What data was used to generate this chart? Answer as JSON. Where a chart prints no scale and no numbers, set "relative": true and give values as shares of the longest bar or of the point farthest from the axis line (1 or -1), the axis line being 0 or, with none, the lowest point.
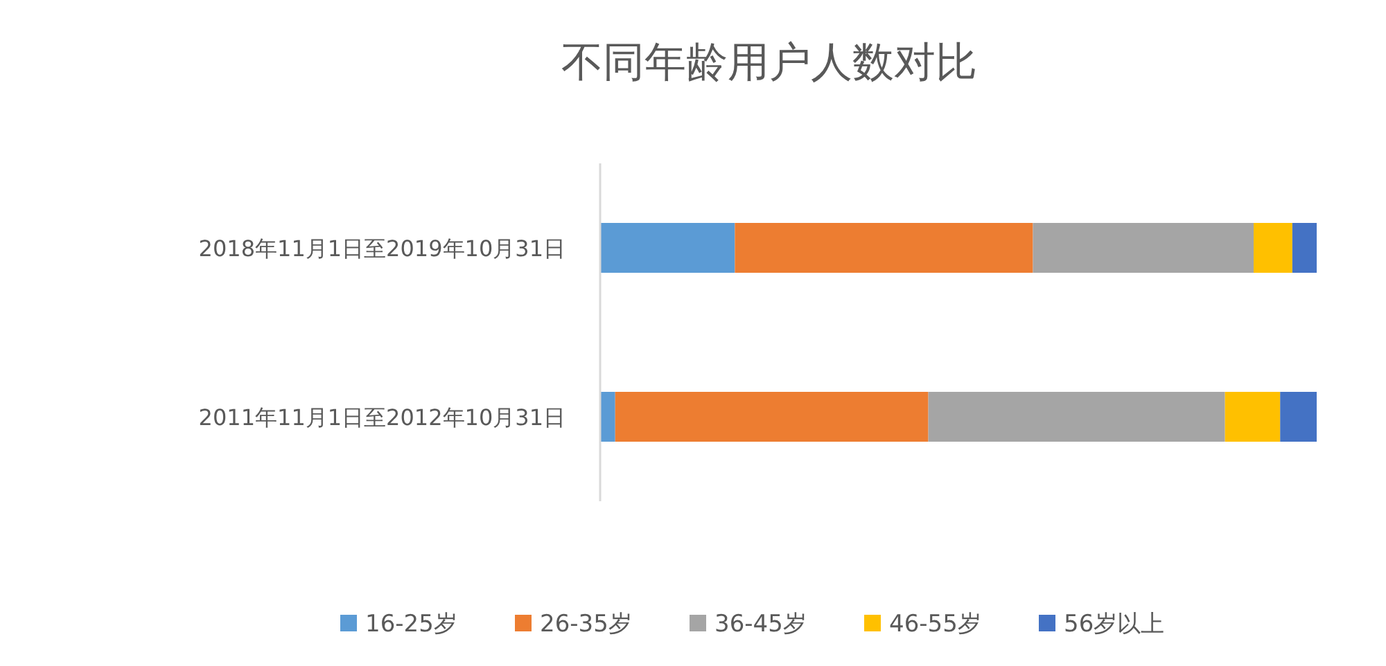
{
  "chart_data": {
    "type": "bar",
    "title": "不同年龄用户人数对比",
    "orientation": "horizontal",
    "stacked": true,
    "relative": true,
    "legend": "bottom",
    "categories": [
      "2018年11月1日至2019年10月31日",
      "2011年11月1日至2012年10月31日"
    ],
    "series": [
      {
        "name": "16-25岁",
        "color": "#5b9bd5",
        "values": [
          0.188,
          0.021
        ]
      },
      {
        "name": "26-35岁",
        "color": "#ed7d31",
        "values": [
          0.416,
          0.437
        ]
      },
      {
        "name": "36-45岁",
        "color": "#a5a5a5",
        "values": [
          0.308,
          0.414
        ]
      },
      {
        "name": "46-55岁",
        "color": "#ffc000",
        "values": [
          0.054,
          0.077
        ]
      },
      {
        "name": "56岁以上",
        "color": "#4472c4",
        "values": [
          0.034,
          0.051
        ]
      }
    ]
  }
}
